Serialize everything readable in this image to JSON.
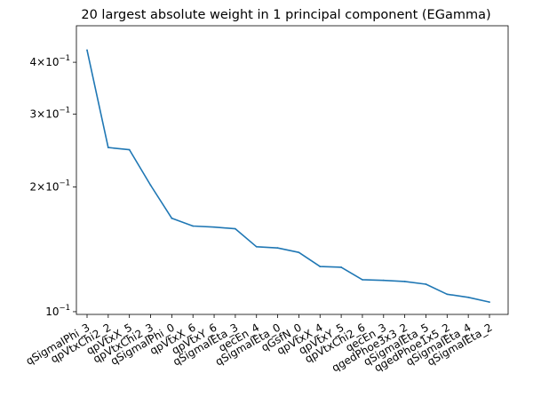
{
  "chart_data": {
    "type": "line",
    "title": "20 largest absolute weight in 1 principal component (EGamma)",
    "xlabel": "",
    "ylabel": "",
    "y_scale": "log",
    "ylim": [
      0.0985,
      0.49
    ],
    "categories": [
      "qSigmaIPhi_3",
      "qpVtxChi2_2",
      "qpVtxX_5",
      "qpVtxChi2_3",
      "qSigmaIPhi_0",
      "qpVtxX_6",
      "qpVtxY_6",
      "qSigmaIEta_3",
      "qecEn_4",
      "qSigmaIEta_0",
      "qGsfN_0",
      "qpVtxX_4",
      "qpVtxY_5",
      "qpVtxChi2_6",
      "qecEn_3",
      "qgedPhoe3x3_2",
      "qSigmaIEta_5",
      "qgedPhoe1x5_2",
      "qSigmaIEta_4",
      "qSigmaIEta_2"
    ],
    "series": [
      {
        "values": [
          0.428,
          0.249,
          0.246,
          0.202,
          0.168,
          0.161,
          0.16,
          0.1585,
          0.1435,
          0.1425,
          0.139,
          0.1285,
          0.128,
          0.1195,
          0.119,
          0.1183,
          0.1165,
          0.1102,
          0.1083,
          0.1055
        ],
        "color": "#1f77b4"
      }
    ],
    "yticks": [
      {
        "value": 0.1,
        "mantissa": "10",
        "exponent": "−1"
      },
      {
        "value": 0.2,
        "mantissa": "2×10",
        "exponent": "−1"
      },
      {
        "value": 0.3,
        "mantissa": "3×10",
        "exponent": "−1"
      },
      {
        "value": 0.4,
        "mantissa": "4×10",
        "exponent": "−1"
      }
    ],
    "grid": false,
    "legend": "none"
  }
}
